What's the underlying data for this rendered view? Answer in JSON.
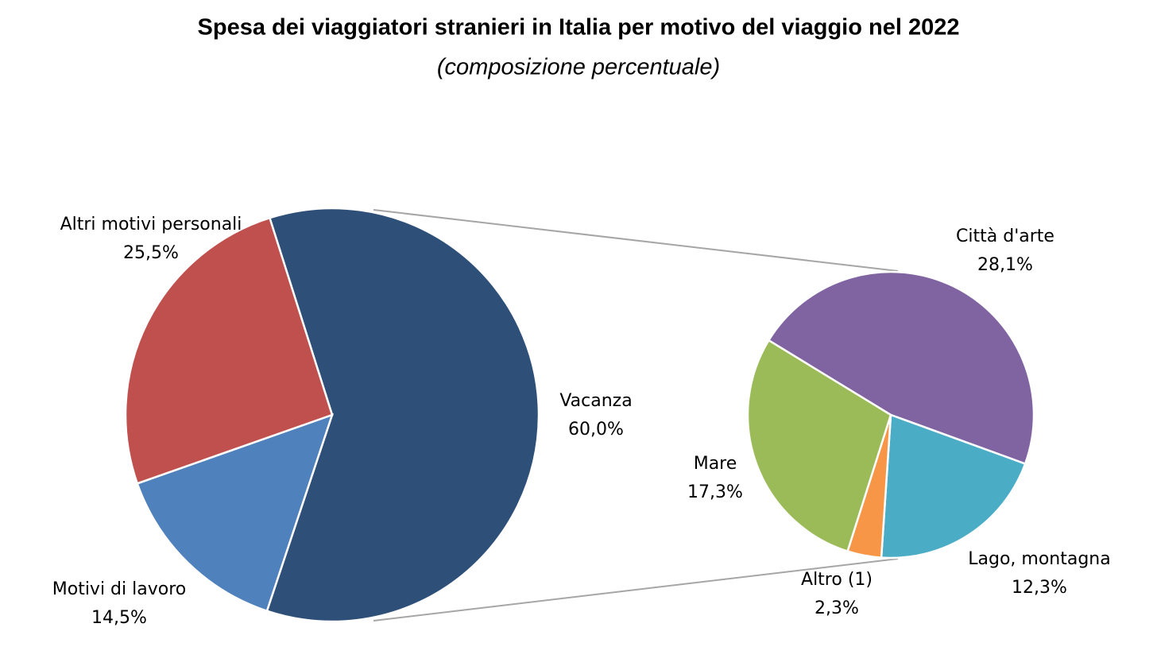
{
  "chart_data": [
    {
      "type": "pie",
      "title": "Spesa dei viaggiatori stranieri in Italia per motivo del viaggio nel 2022",
      "subtitle": "(composizione percentuale)",
      "categories": [
        "Vacanza",
        "Motivi di lavoro",
        "Altri motivi personali"
      ],
      "values": [
        60.0,
        14.5,
        25.5
      ],
      "value_labels": [
        "60,0%",
        "14,5%",
        "25,5%"
      ],
      "colors": [
        "#2e4f78",
        "#4f81bd",
        "#c0504d"
      ]
    },
    {
      "type": "pie",
      "categories": [
        "Città d'arte",
        "Lago, montagna",
        "Altro (1)",
        "Mare"
      ],
      "values": [
        28.1,
        12.3,
        2.3,
        17.3
      ],
      "value_labels": [
        "28,1%",
        "12,3%",
        "2,3%",
        "17,3%"
      ],
      "colors": [
        "#8064a2",
        "#4bacc6",
        "#f79646",
        "#9bbb59"
      ]
    }
  ]
}
